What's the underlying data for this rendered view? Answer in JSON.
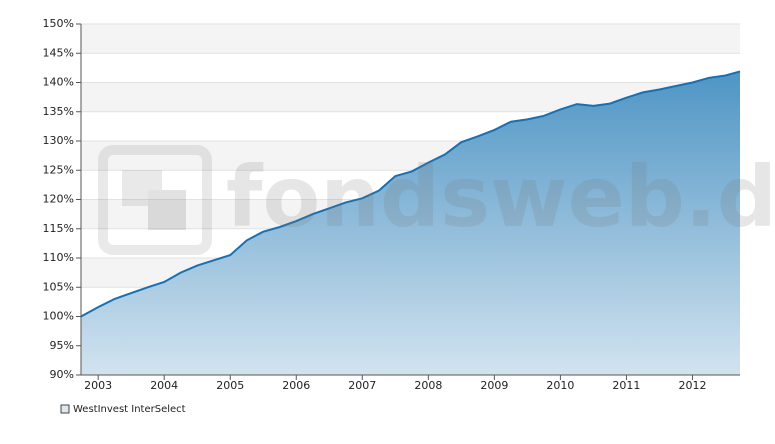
{
  "chart_data": {
    "type": "area",
    "watermark": "fondsweb.de",
    "x": [
      2002.74,
      2003.0,
      2003.25,
      2003.5,
      2003.75,
      2004.0,
      2004.25,
      2004.5,
      2004.75,
      2005.0,
      2005.25,
      2005.5,
      2005.75,
      2006.0,
      2006.25,
      2006.5,
      2006.75,
      2007.0,
      2007.25,
      2007.5,
      2007.75,
      2008.0,
      2008.25,
      2008.5,
      2008.75,
      2009.0,
      2009.25,
      2009.5,
      2009.75,
      2010.0,
      2010.25,
      2010.5,
      2010.75,
      2011.0,
      2011.25,
      2011.5,
      2011.75,
      2012.0,
      2012.25,
      2012.5,
      2012.72
    ],
    "series": [
      {
        "name": "WestInvest InterSelect",
        "color": "#1a6fb0",
        "values": [
          100,
          101.6,
          103,
          104,
          105,
          105.9,
          107.5,
          108.7,
          109.6,
          110.5,
          113,
          114.5,
          115.3,
          116.3,
          117.5,
          118.5,
          119.5,
          120.2,
          121.5,
          124,
          124.8,
          126.3,
          127.7,
          129.8,
          130.8,
          131.9,
          133.3,
          133.7,
          134.3,
          135.4,
          136.3,
          136,
          136.4,
          137.4,
          138.3,
          138.8,
          139.4,
          140,
          140.8,
          141.2,
          141.9
        ]
      }
    ],
    "xlim": [
      2002.74,
      2012.72
    ],
    "xticks": [
      2003,
      2004,
      2005,
      2006,
      2007,
      2008,
      2009,
      2010,
      2011,
      2012
    ],
    "ylim": [
      90,
      150
    ],
    "yticks": [
      {
        "value": 90,
        "label": "90%"
      },
      {
        "value": 95,
        "label": "95%"
      },
      {
        "value": 100,
        "label": "100%"
      },
      {
        "value": 105,
        "label": "105%"
      },
      {
        "value": 110,
        "label": "110%"
      },
      {
        "value": 115,
        "label": "115%"
      },
      {
        "value": 120,
        "label": "120%"
      },
      {
        "value": 125,
        "label": "125%"
      },
      {
        "value": 130,
        "label": "130%"
      },
      {
        "value": 135,
        "label": "135%"
      },
      {
        "value": 140,
        "label": "140%"
      },
      {
        "value": 145,
        "label": "145%"
      },
      {
        "value": 150,
        "label": "150%"
      }
    ],
    "grid": true,
    "legend": "bottom-left"
  }
}
